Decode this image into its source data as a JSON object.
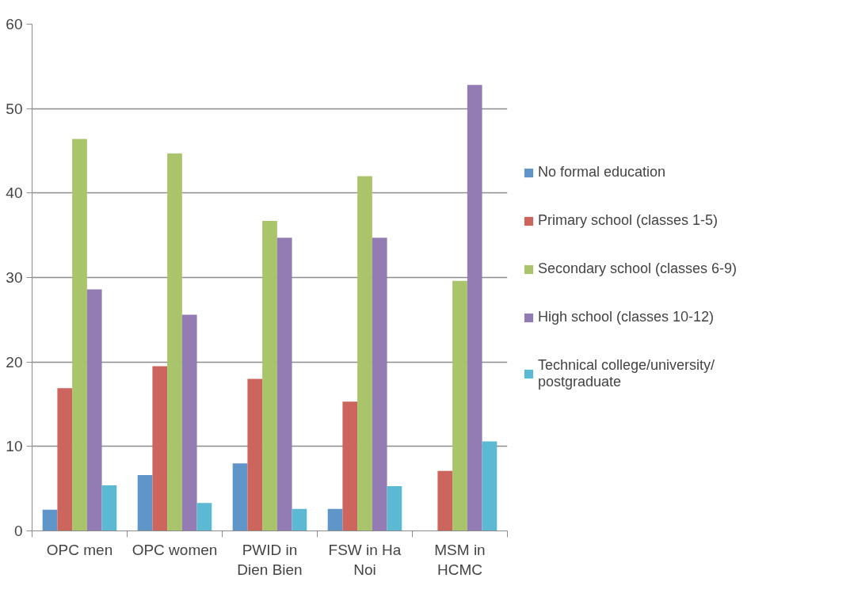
{
  "chart_data": {
    "type": "bar",
    "categories": [
      "OPC men",
      "OPC women",
      "PWID in Dien Bien",
      "FSW in Ha Noi",
      "MSM in HCMC"
    ],
    "series": [
      {
        "name": "No formal education",
        "color": "#6095c9",
        "values": [
          2.5,
          6.6,
          8.0,
          2.6,
          null
        ]
      },
      {
        "name": "Primary school (classes 1-5)",
        "color": "#cc655d",
        "values": [
          16.9,
          19.5,
          18.0,
          15.3,
          7.1
        ]
      },
      {
        "name": "Secondary school (classes 6-9)",
        "color": "#aac46c",
        "values": [
          46.4,
          44.7,
          36.7,
          42.0,
          29.6
        ]
      },
      {
        "name": "High school (classes 10-12)",
        "color": "#937cb4",
        "values": [
          28.6,
          25.6,
          34.7,
          34.7,
          52.8
        ]
      },
      {
        "name": "Technical college/university/ postgraduate",
        "color": "#5cb9d3",
        "values": [
          5.4,
          3.3,
          2.6,
          5.3,
          10.6
        ]
      }
    ],
    "ylim": [
      0,
      60
    ],
    "yticks": [
      0,
      10,
      20,
      30,
      40,
      50,
      60
    ],
    "grid": "y",
    "legend": "right"
  }
}
